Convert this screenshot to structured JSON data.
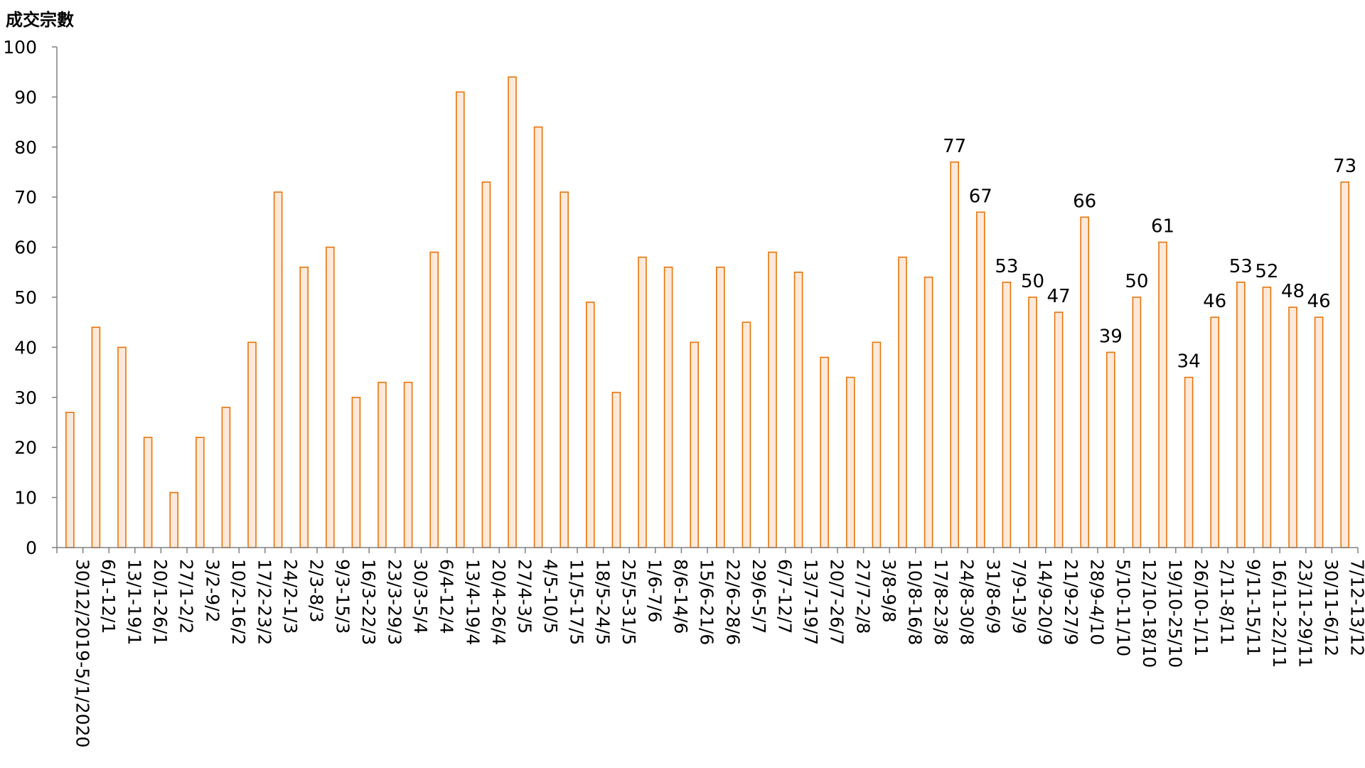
{
  "chart_data": {
    "type": "bar",
    "title": "",
    "xlabel": "",
    "ylabel": "成交宗數",
    "ylim": [
      0,
      100
    ],
    "yticks": [
      0,
      10,
      20,
      30,
      40,
      50,
      60,
      70,
      80,
      90,
      100
    ],
    "grid": false,
    "legend": "none",
    "colors": {
      "bar_stroke": "#E8740C",
      "bar_fill": "#FDE9D9",
      "axis": "#808080"
    },
    "categories": [
      "30/12/2019-5/1/2020",
      "6/1-12/1",
      "13/1-19/1",
      "20/1-26/1",
      "27/1-2/2",
      "3/2-9/2",
      "10/2-16/2",
      "17/2-23/2",
      "24/2-1/3",
      "2/3-8/3",
      "9/3-15/3",
      "16/3-22/3",
      "23/3-29/3",
      "30/3-5/4",
      "6/4-12/4",
      "13/4-19/4",
      "20/4-26/4",
      "27/4-3/5",
      "4/5-10/5",
      "11/5-17/5",
      "18/5-24/5",
      "25/5-31/5",
      "1/6-7/6",
      "8/6-14/6",
      "15/6-21/6",
      "22/6-28/6",
      "29/6-5/7",
      "6/7-12/7",
      "13/7-19/7",
      "20/7-26/7",
      "27/7-2/8",
      "3/8-9/8",
      "10/8-16/8",
      "17/8-23/8",
      "24/8-30/8",
      "31/8-6/9",
      "7/9-13/9",
      "14/9-20/9",
      "21/9-27/9",
      "28/9-4/10",
      "5/10-11/10",
      "12/10-18/10",
      "19/10-25/10",
      "26/10-1/11",
      "2/11-8/11",
      "9/11-15/11",
      "16/11-22/11",
      "23/11-29/11",
      "30/11-6/12",
      "7/12-13/12"
    ],
    "values": [
      27,
      44,
      40,
      22,
      11,
      22,
      28,
      41,
      71,
      56,
      60,
      30,
      33,
      33,
      59,
      91,
      73,
      94,
      84,
      71,
      49,
      31,
      58,
      56,
      41,
      56,
      45,
      59,
      55,
      38,
      34,
      41,
      58,
      54,
      77,
      67,
      53,
      50,
      47,
      66,
      39,
      50,
      61,
      34,
      46,
      53,
      52,
      48,
      46,
      73
    ],
    "data_labels": [
      null,
      null,
      null,
      null,
      null,
      null,
      null,
      null,
      null,
      null,
      null,
      null,
      null,
      null,
      null,
      null,
      null,
      null,
      null,
      null,
      null,
      null,
      null,
      null,
      null,
      null,
      null,
      null,
      null,
      null,
      null,
      null,
      null,
      null,
      "77",
      "67",
      "53",
      "50",
      "47",
      "66",
      "39",
      "50",
      "61",
      "34",
      "46",
      "53",
      "52",
      "48",
      "46",
      "73"
    ]
  }
}
